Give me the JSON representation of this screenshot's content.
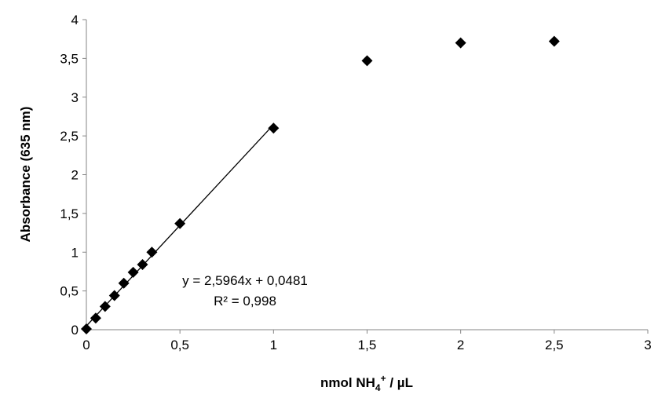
{
  "chart_data": {
    "type": "scatter",
    "xlabel": "nmol NH",
    "xlabel_sub": "4",
    "xlabel_sup": "+",
    "xlabel_tail": " / µL",
    "ylabel": "Absorbance (635 nm)",
    "xlim": [
      0,
      3
    ],
    "ylim": [
      0,
      4
    ],
    "x_ticks": [
      "0",
      "0,5",
      "1",
      "1,5",
      "2",
      "2,5",
      "3"
    ],
    "y_ticks": [
      "0",
      "0,5",
      "1",
      "1,5",
      "2",
      "2,5",
      "3",
      "3,5",
      "4"
    ],
    "grid": false,
    "points": [
      {
        "x": 0,
        "y": 0.01
      },
      {
        "x": 0.05,
        "y": 0.15
      },
      {
        "x": 0.1,
        "y": 0.3
      },
      {
        "x": 0.15,
        "y": 0.44
      },
      {
        "x": 0.2,
        "y": 0.6
      },
      {
        "x": 0.25,
        "y": 0.74
      },
      {
        "x": 0.3,
        "y": 0.84
      },
      {
        "x": 0.35,
        "y": 1.0
      },
      {
        "x": 0.5,
        "y": 1.37
      },
      {
        "x": 1.0,
        "y": 2.6
      },
      {
        "x": 1.5,
        "y": 3.47
      },
      {
        "x": 2.0,
        "y": 3.7
      },
      {
        "x": 2.5,
        "y": 3.72
      }
    ],
    "trendline": {
      "slope": 2.5964,
      "intercept": 0.0481,
      "x_range": [
        0,
        1
      ]
    },
    "annotations": {
      "equation": "y = 2,5964x + 0,0481",
      "r_squared": "R² = 0,998"
    }
  }
}
